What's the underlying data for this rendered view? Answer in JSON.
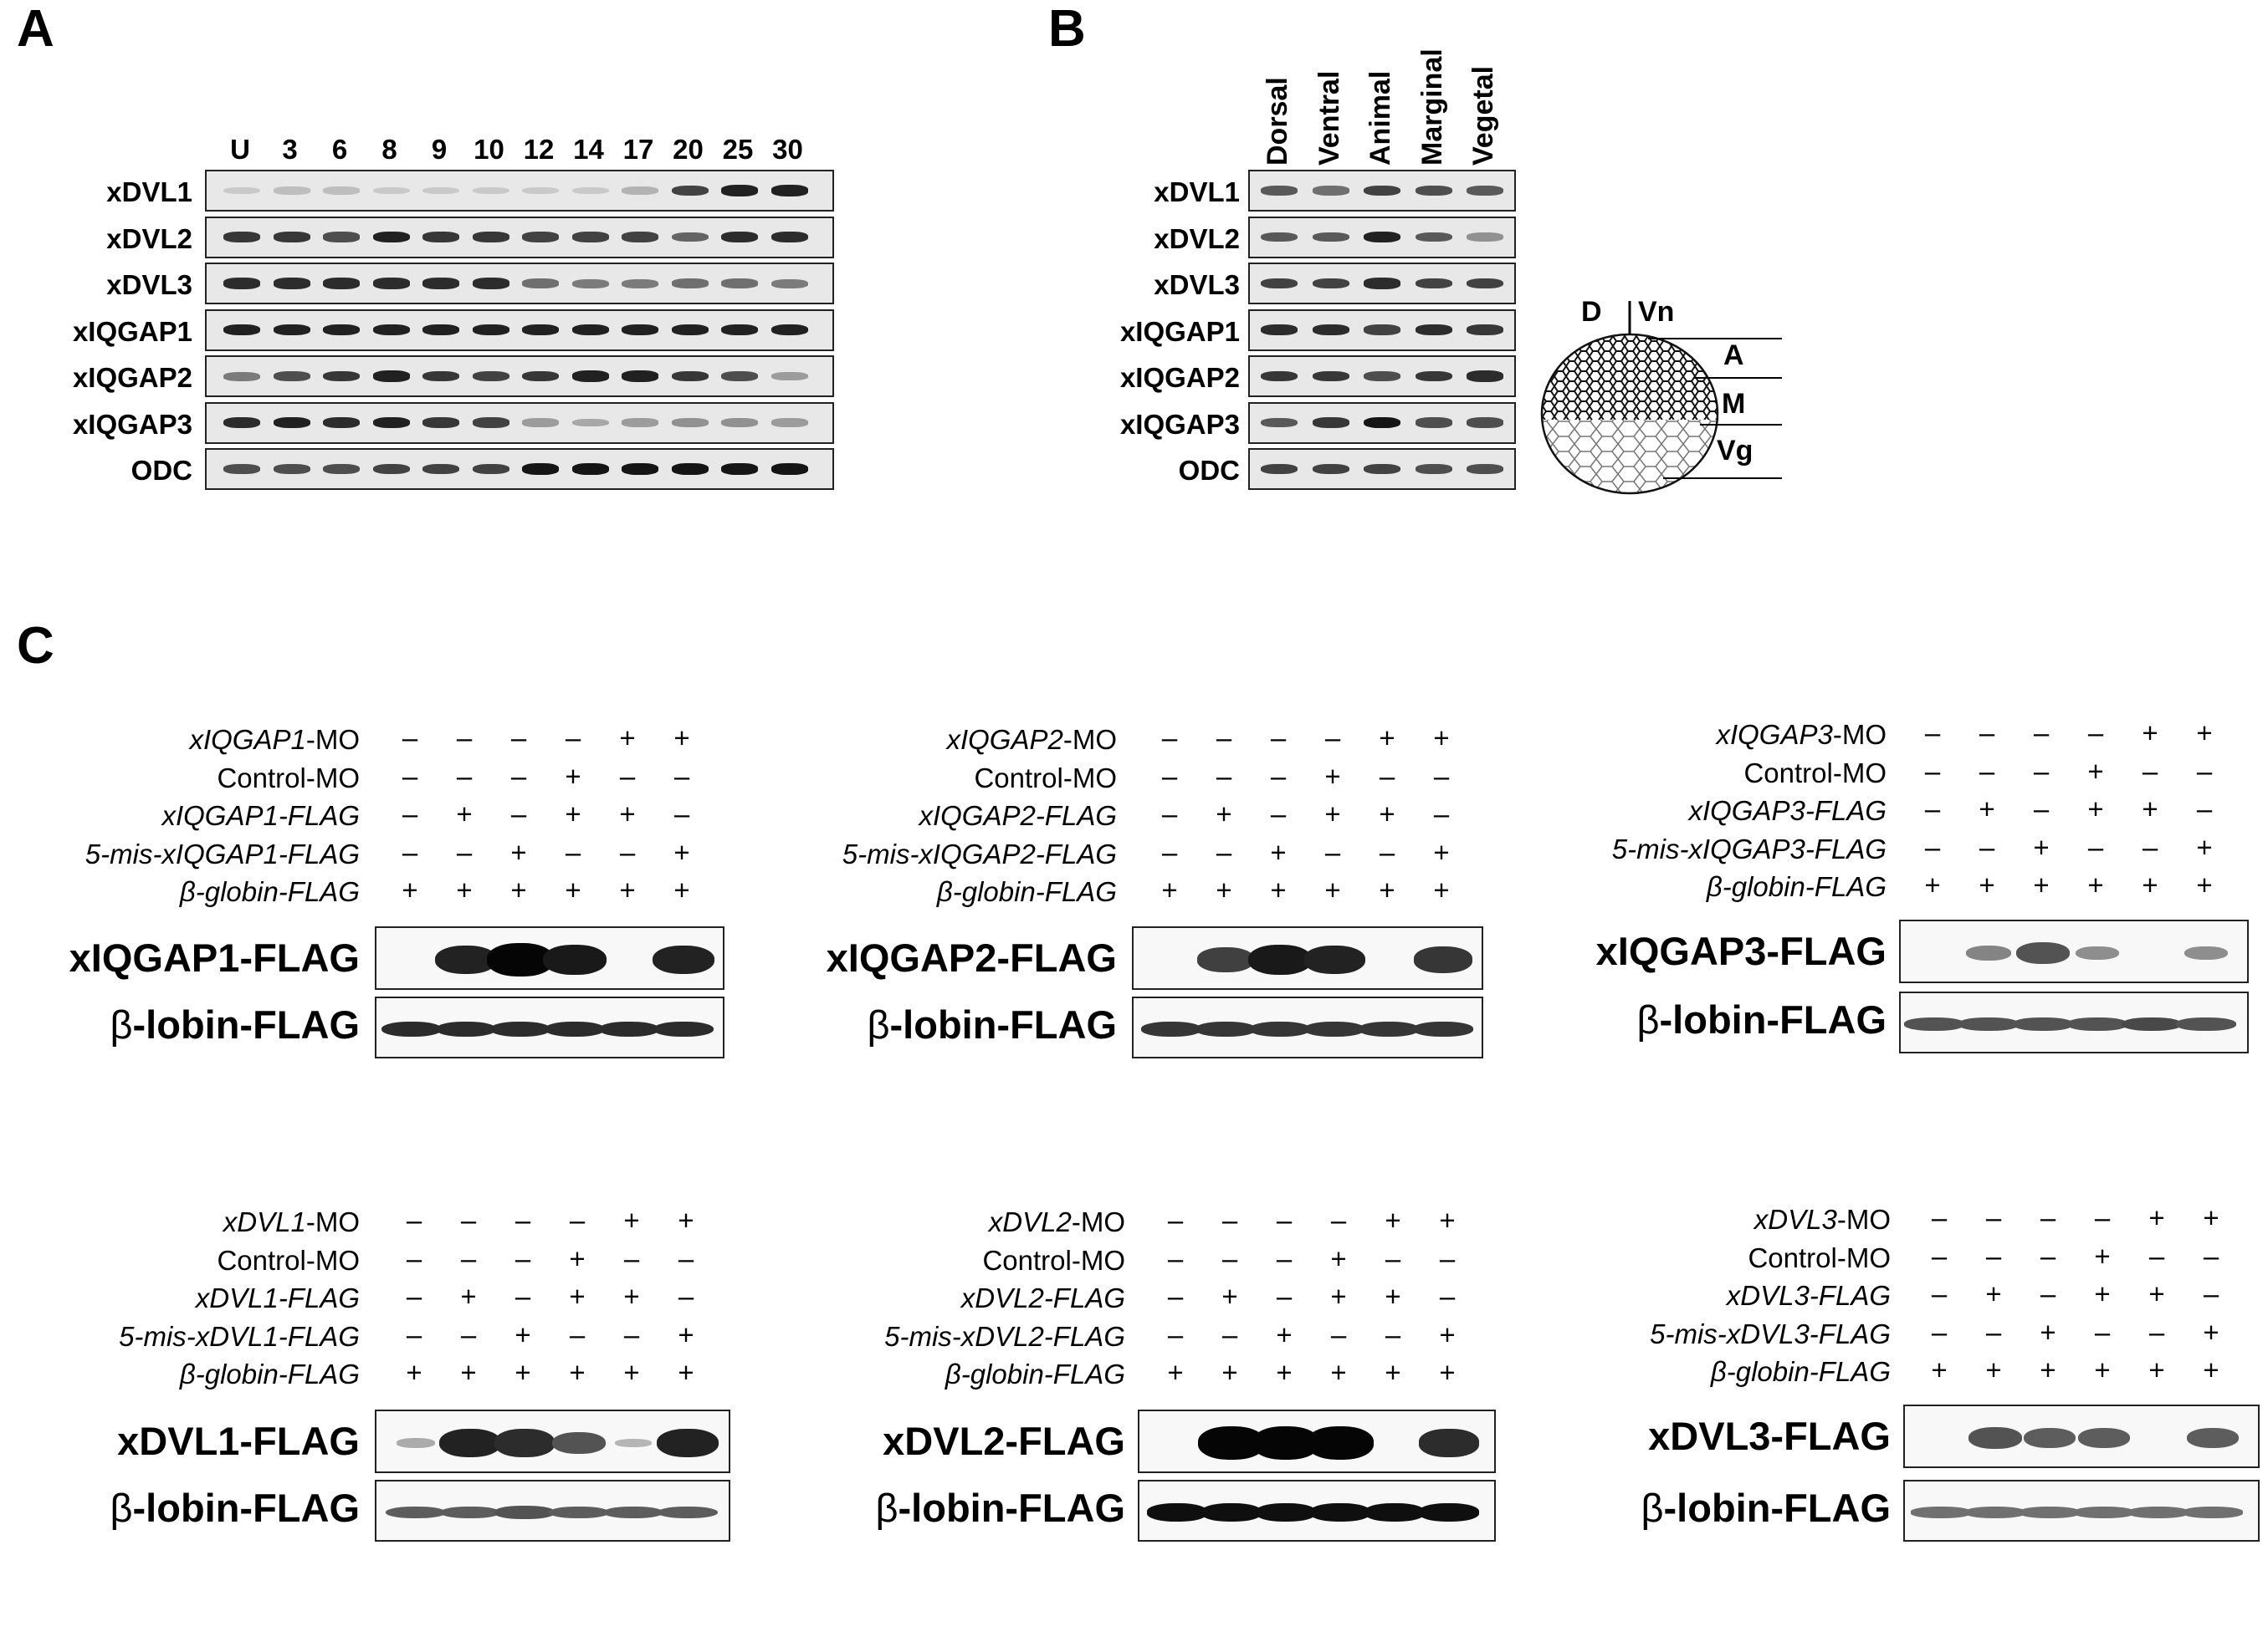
{
  "panel_a": {
    "letter": "A",
    "lanes": [
      "U",
      "3",
      "6",
      "8",
      "9",
      "10",
      "12",
      "14",
      "17",
      "20",
      "25",
      "30"
    ],
    "rows": [
      {
        "label": "xDVL1",
        "levels": [
          0.15,
          0.2,
          0.2,
          0.15,
          0.15,
          0.15,
          0.15,
          0.15,
          0.25,
          0.75,
          0.9,
          0.9
        ]
      },
      {
        "label": "xDVL2",
        "levels": [
          0.8,
          0.8,
          0.7,
          0.9,
          0.8,
          0.8,
          0.75,
          0.75,
          0.75,
          0.6,
          0.85,
          0.85
        ]
      },
      {
        "label": "xDVL3",
        "levels": [
          0.85,
          0.85,
          0.85,
          0.85,
          0.85,
          0.85,
          0.55,
          0.5,
          0.5,
          0.55,
          0.55,
          0.5
        ]
      },
      {
        "label": "xIQGAP1",
        "levels": [
          0.9,
          0.9,
          0.9,
          0.9,
          0.9,
          0.9,
          0.9,
          0.9,
          0.9,
          0.9,
          0.9,
          0.9
        ]
      },
      {
        "label": "xIQGAP2",
        "levels": [
          0.5,
          0.7,
          0.8,
          0.9,
          0.8,
          0.75,
          0.8,
          0.9,
          0.9,
          0.8,
          0.7,
          0.35
        ]
      },
      {
        "label": "xIQGAP3",
        "levels": [
          0.85,
          0.9,
          0.85,
          0.9,
          0.8,
          0.75,
          0.35,
          0.3,
          0.35,
          0.4,
          0.4,
          0.35
        ]
      },
      {
        "label": "ODC",
        "levels": [
          0.7,
          0.7,
          0.7,
          0.75,
          0.75,
          0.75,
          0.95,
          0.95,
          0.95,
          0.95,
          0.95,
          0.95
        ]
      }
    ]
  },
  "panel_b": {
    "letter": "B",
    "lanes": [
      "Dorsal",
      "Ventral",
      "Animal",
      "Marginal",
      "Vegetal"
    ],
    "rows": [
      {
        "label": "xDVL1",
        "levels": [
          0.65,
          0.55,
          0.75,
          0.7,
          0.65
        ]
      },
      {
        "label": "xDVL2",
        "levels": [
          0.65,
          0.65,
          0.9,
          0.65,
          0.4
        ]
      },
      {
        "label": "xDVL3",
        "levels": [
          0.75,
          0.75,
          0.85,
          0.75,
          0.75
        ]
      },
      {
        "label": "xIQGAP1",
        "levels": [
          0.85,
          0.85,
          0.75,
          0.85,
          0.8
        ]
      },
      {
        "label": "xIQGAP2",
        "levels": [
          0.8,
          0.8,
          0.7,
          0.8,
          0.85
        ]
      },
      {
        "label": "xIQGAP3",
        "levels": [
          0.65,
          0.8,
          0.95,
          0.7,
          0.7
        ]
      },
      {
        "label": "ODC",
        "levels": [
          0.75,
          0.75,
          0.75,
          0.7,
          0.7
        ]
      }
    ],
    "embryo": {
      "D": "D",
      "Vn": "Vn",
      "A": "A",
      "M": "M",
      "Vg": "Vg"
    }
  },
  "panel_c": {
    "letter": "C",
    "blots": [
      {
        "conds": [
          {
            "italic": "xIQGAP1",
            "rest": "-MO",
            "signs": [
              "–",
              "–",
              "–",
              "–",
              "+",
              "+"
            ]
          },
          {
            "italic": "",
            "rest": "Control-MO",
            "signs": [
              "–",
              "–",
              "–",
              "+",
              "–",
              "–"
            ]
          },
          {
            "italic": "xIQGAP1-FLAG",
            "rest": "",
            "signs": [
              "–",
              "+",
              "–",
              "+",
              "+",
              "–"
            ]
          },
          {
            "italic": "5-mis-xIQGAP1-FLAG",
            "rest": "",
            "signs": [
              "–",
              "–",
              "+",
              "–",
              "–",
              "+"
            ]
          },
          {
            "italic": "β-globin-FLAG",
            "rest": "",
            "signs": [
              "+",
              "+",
              "+",
              "+",
              "+",
              "+"
            ]
          }
        ],
        "target": "xIQGAP1-FLAG",
        "control_prefix": "β",
        "control_rest": "-lobin-FLAG",
        "levels": [
          0,
          0.85,
          1,
          0.9,
          0,
          0.85
        ],
        "ctrl_levels": [
          0.8,
          0.8,
          0.8,
          0.8,
          0.8,
          0.8
        ]
      },
      {
        "conds": [
          {
            "italic": "xIQGAP2",
            "rest": "-MO",
            "signs": [
              "–",
              "–",
              "–",
              "–",
              "+",
              "+"
            ]
          },
          {
            "italic": "",
            "rest": "Control-MO",
            "signs": [
              "–",
              "–",
              "–",
              "+",
              "–",
              "–"
            ]
          },
          {
            "italic": "xIQGAP2-FLAG",
            "rest": "",
            "signs": [
              "–",
              "+",
              "–",
              "+",
              "+",
              "–"
            ]
          },
          {
            "italic": "5-mis-xIQGAP2-FLAG",
            "rest": "",
            "signs": [
              "–",
              "–",
              "+",
              "–",
              "–",
              "+"
            ]
          },
          {
            "italic": "β-globin-FLAG",
            "rest": "",
            "signs": [
              "+",
              "+",
              "+",
              "+",
              "+",
              "+"
            ]
          }
        ],
        "target": "xIQGAP2-FLAG",
        "control_prefix": "β",
        "control_rest": "-lobin-FLAG",
        "levels": [
          0,
          0.7,
          0.9,
          0.85,
          0,
          0.75
        ],
        "ctrl_levels": [
          0.75,
          0.75,
          0.75,
          0.75,
          0.75,
          0.75
        ]
      },
      {
        "conds": [
          {
            "italic": "xIQGAP3",
            "rest": "-MO",
            "signs": [
              "–",
              "–",
              "–",
              "–",
              "+",
              "+"
            ]
          },
          {
            "italic": "",
            "rest": "Control-MO",
            "signs": [
              "–",
              "–",
              "–",
              "+",
              "–",
              "–"
            ]
          },
          {
            "italic": "xIQGAP3-FLAG",
            "rest": "",
            "signs": [
              "–",
              "+",
              "–",
              "+",
              "+",
              "–"
            ]
          },
          {
            "italic": "5-mis-xIQGAP3-FLAG",
            "rest": "",
            "signs": [
              "–",
              "–",
              "+",
              "–",
              "–",
              "+"
            ]
          },
          {
            "italic": "β-globin-FLAG",
            "rest": "",
            "signs": [
              "+",
              "+",
              "+",
              "+",
              "+",
              "+"
            ]
          }
        ],
        "target": "xIQGAP3-FLAG",
        "control_prefix": "β",
        "control_rest": "-lobin-FLAG",
        "levels": [
          0,
          0.35,
          0.6,
          0.3,
          0,
          0.3
        ],
        "ctrl_levels": [
          0.6,
          0.6,
          0.6,
          0.6,
          0.65,
          0.6
        ]
      },
      {
        "conds": [
          {
            "italic": "xDVL1",
            "rest": "-MO",
            "signs": [
              "–",
              "–",
              "–",
              "–",
              "+",
              "+"
            ]
          },
          {
            "italic": "",
            "rest": "Control-MO",
            "signs": [
              "–",
              "–",
              "–",
              "+",
              "–",
              "–"
            ]
          },
          {
            "italic": "xDVL1-FLAG",
            "rest": "",
            "signs": [
              "–",
              "+",
              "–",
              "+",
              "+",
              "–"
            ]
          },
          {
            "italic": "5-mis-xDVL1-FLAG",
            "rest": "",
            "signs": [
              "–",
              "–",
              "+",
              "–",
              "–",
              "+"
            ]
          },
          {
            "italic": "β-globin-FLAG",
            "rest": "",
            "signs": [
              "+",
              "+",
              "+",
              "+",
              "+",
              "+"
            ]
          }
        ],
        "target": "xDVL1-FLAG",
        "control_prefix": "β",
        "control_rest": "-lobin-FLAG",
        "levels": [
          0.15,
          0.85,
          0.8,
          0.6,
          0.1,
          0.85
        ],
        "ctrl_levels": [
          0.55,
          0.55,
          0.6,
          0.55,
          0.55,
          0.55
        ]
      },
      {
        "conds": [
          {
            "italic": "xDVL2",
            "rest": "-MO",
            "signs": [
              "–",
              "–",
              "–",
              "–",
              "+",
              "+"
            ]
          },
          {
            "italic": "",
            "rest": "Control-MO",
            "signs": [
              "–",
              "–",
              "–",
              "+",
              "–",
              "–"
            ]
          },
          {
            "italic": "xDVL2-FLAG",
            "rest": "",
            "signs": [
              "–",
              "+",
              "–",
              "+",
              "+",
              "–"
            ]
          },
          {
            "italic": "5-mis-xDVL2-FLAG",
            "rest": "",
            "signs": [
              "–",
              "–",
              "+",
              "–",
              "–",
              "+"
            ]
          },
          {
            "italic": "β-globin-FLAG",
            "rest": "",
            "signs": [
              "+",
              "+",
              "+",
              "+",
              "+",
              "+"
            ]
          }
        ],
        "target": "xDVL2-FLAG",
        "control_prefix": "β",
        "control_rest": "-lobin-FLAG",
        "levels": [
          0,
          1,
          1,
          1,
          0,
          0.8
        ],
        "ctrl_levels": [
          0.95,
          0.95,
          0.95,
          0.95,
          0.95,
          0.95
        ]
      },
      {
        "conds": [
          {
            "italic": "xDVL3",
            "rest": "-MO",
            "signs": [
              "–",
              "–",
              "–",
              "–",
              "+",
              "+"
            ]
          },
          {
            "italic": "",
            "rest": "Control-MO",
            "signs": [
              "–",
              "–",
              "–",
              "+",
              "–",
              "–"
            ]
          },
          {
            "italic": "xDVL3-FLAG",
            "rest": "",
            "signs": [
              "–",
              "+",
              "–",
              "+",
              "+",
              "–"
            ]
          },
          {
            "italic": "5-mis-xDVL3-FLAG",
            "rest": "",
            "signs": [
              "–",
              "–",
              "+",
              "–",
              "–",
              "+"
            ]
          },
          {
            "italic": "β-globin-FLAG",
            "rest": "",
            "signs": [
              "+",
              "+",
              "+",
              "+",
              "+",
              "+"
            ]
          }
        ],
        "target": "xDVL3-FLAG",
        "control_prefix": "β",
        "control_rest": "-lobin-FLAG",
        "levels": [
          0,
          0.6,
          0.55,
          0.55,
          0,
          0.55
        ],
        "ctrl_levels": [
          0.45,
          0.45,
          0.45,
          0.45,
          0.45,
          0.45
        ]
      }
    ]
  }
}
